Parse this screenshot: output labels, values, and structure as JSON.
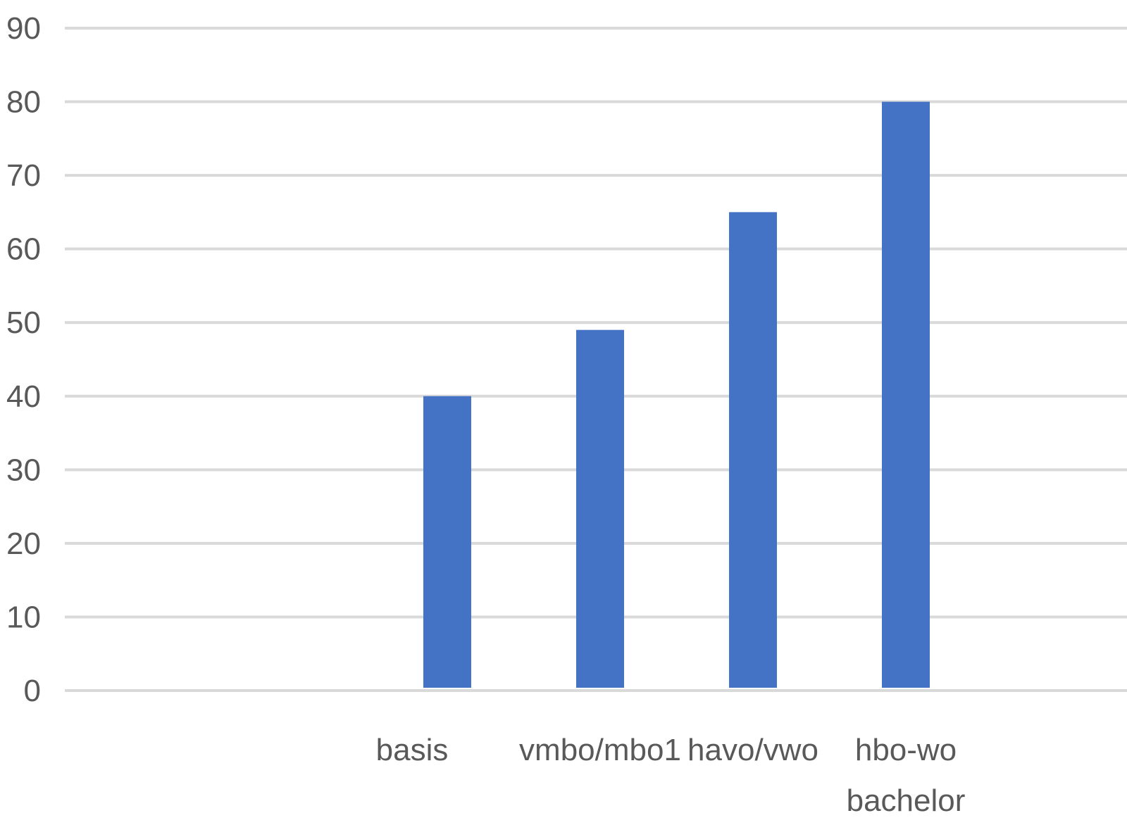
{
  "chart_data": {
    "type": "bar",
    "title": "",
    "xlabel": "",
    "ylabel": "",
    "categories": [
      [
        "basis"
      ],
      [
        "vmbo/mbo1"
      ],
      [
        "havo/vwo"
      ],
      [
        "hbo-wo",
        "bachelor"
      ]
    ],
    "values": [
      40,
      49,
      65,
      80
    ],
    "ylim": [
      0,
      90
    ],
    "yticks": [
      0,
      10,
      20,
      30,
      40,
      50,
      60,
      70,
      80,
      90
    ],
    "grid": true,
    "legend": "none",
    "colors": {
      "bar": "#4472c4",
      "grid": "#d9d9d9",
      "text": "#595959"
    }
  }
}
